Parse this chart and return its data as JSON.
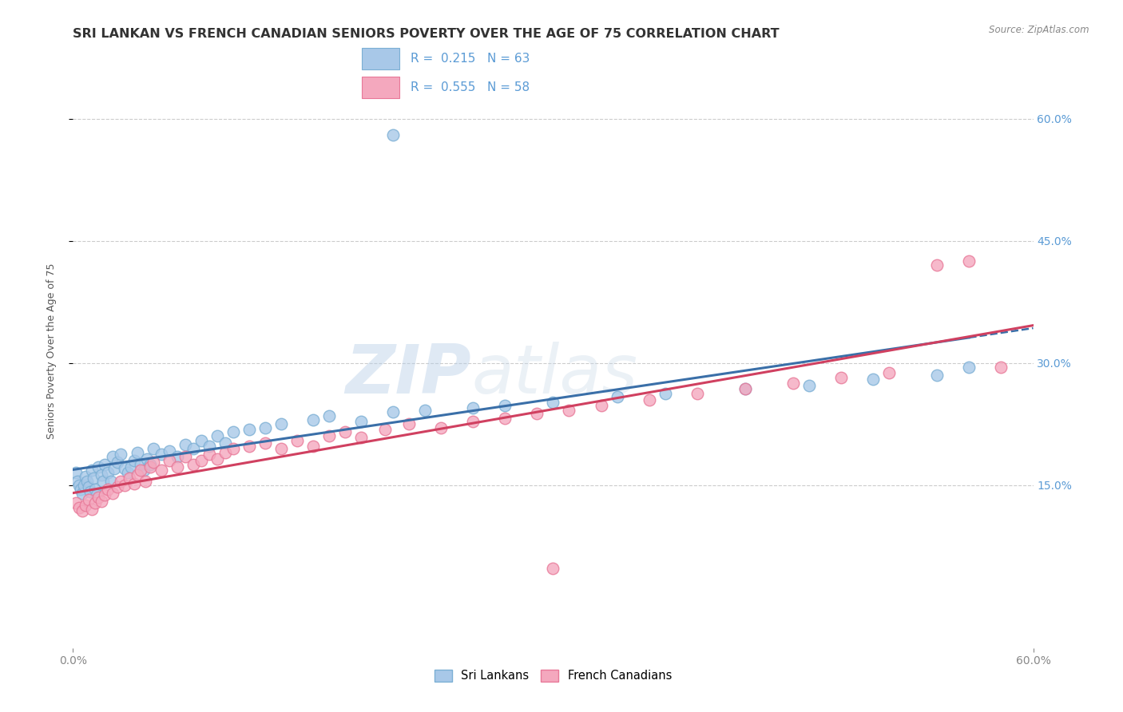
{
  "title": "SRI LANKAN VS FRENCH CANADIAN SENIORS POVERTY OVER THE AGE OF 75 CORRELATION CHART",
  "source": "Source: ZipAtlas.com",
  "ylabel": "Seniors Poverty Over the Age of 75",
  "xlim": [
    0.0,
    0.6
  ],
  "ylim": [
    -0.05,
    0.68
  ],
  "xticks": [
    0.0,
    0.6
  ],
  "xtick_labels": [
    "0.0%",
    "60.0%"
  ],
  "yticks": [
    0.15,
    0.3,
    0.45,
    0.6
  ],
  "ytick_labels": [
    "15.0%",
    "30.0%",
    "45.0%",
    "60.0%"
  ],
  "sri_lankan_color": "#a8c8e8",
  "french_canadian_color": "#f4a8be",
  "sri_lankan_edge": "#7bafd4",
  "french_canadian_edge": "#e87898",
  "sri_lankan_line_color": "#3a6fa8",
  "french_canadian_line_color": "#d04060",
  "sri_lankan_R": 0.215,
  "sri_lankan_N": 63,
  "french_canadian_R": 0.555,
  "french_canadian_N": 58,
  "watermark_text": "ZIPatlas",
  "legend_label_1": "Sri Lankans",
  "legend_label_2": "French Canadians",
  "sri_lankans_x": [
    0.002,
    0.003,
    0.004,
    0.005,
    0.006,
    0.007,
    0.008,
    0.009,
    0.01,
    0.011,
    0.012,
    0.013,
    0.014,
    0.015,
    0.016,
    0.018,
    0.019,
    0.02,
    0.022,
    0.024,
    0.025,
    0.026,
    0.028,
    0.03,
    0.032,
    0.034,
    0.036,
    0.038,
    0.04,
    0.042,
    0.044,
    0.046,
    0.048,
    0.05,
    0.055,
    0.06,
    0.065,
    0.07,
    0.075,
    0.08,
    0.085,
    0.09,
    0.095,
    0.1,
    0.11,
    0.12,
    0.13,
    0.15,
    0.16,
    0.18,
    0.2,
    0.22,
    0.25,
    0.27,
    0.3,
    0.34,
    0.37,
    0.42,
    0.46,
    0.5,
    0.54,
    0.56,
    0.2
  ],
  "sri_lankans_y": [
    0.165,
    0.155,
    0.15,
    0.145,
    0.14,
    0.15,
    0.16,
    0.155,
    0.148,
    0.142,
    0.168,
    0.158,
    0.145,
    0.138,
    0.172,
    0.162,
    0.155,
    0.175,
    0.165,
    0.155,
    0.185,
    0.17,
    0.178,
    0.188,
    0.17,
    0.165,
    0.172,
    0.18,
    0.19,
    0.175,
    0.168,
    0.182,
    0.175,
    0.195,
    0.188,
    0.192,
    0.185,
    0.2,
    0.195,
    0.205,
    0.198,
    0.21,
    0.202,
    0.215,
    0.218,
    0.22,
    0.225,
    0.23,
    0.235,
    0.228,
    0.24,
    0.242,
    0.245,
    0.248,
    0.252,
    0.258,
    0.262,
    0.268,
    0.272,
    0.28,
    0.285,
    0.295,
    0.58
  ],
  "french_canadians_x": [
    0.002,
    0.004,
    0.006,
    0.008,
    0.01,
    0.012,
    0.014,
    0.016,
    0.018,
    0.02,
    0.022,
    0.025,
    0.028,
    0.03,
    0.032,
    0.035,
    0.038,
    0.04,
    0.042,
    0.045,
    0.048,
    0.05,
    0.055,
    0.06,
    0.065,
    0.07,
    0.075,
    0.08,
    0.085,
    0.09,
    0.095,
    0.1,
    0.11,
    0.12,
    0.13,
    0.14,
    0.15,
    0.16,
    0.17,
    0.18,
    0.195,
    0.21,
    0.23,
    0.25,
    0.27,
    0.29,
    0.31,
    0.33,
    0.36,
    0.39,
    0.42,
    0.45,
    0.48,
    0.51,
    0.54,
    0.56,
    0.58,
    0.3
  ],
  "french_canadians_y": [
    0.128,
    0.122,
    0.118,
    0.125,
    0.132,
    0.12,
    0.128,
    0.135,
    0.13,
    0.138,
    0.145,
    0.14,
    0.148,
    0.155,
    0.15,
    0.158,
    0.152,
    0.162,
    0.168,
    0.155,
    0.172,
    0.178,
    0.168,
    0.18,
    0.172,
    0.185,
    0.175,
    0.18,
    0.188,
    0.182,
    0.19,
    0.195,
    0.198,
    0.202,
    0.195,
    0.205,
    0.198,
    0.21,
    0.215,
    0.208,
    0.218,
    0.225,
    0.22,
    0.228,
    0.232,
    0.238,
    0.242,
    0.248,
    0.255,
    0.262,
    0.268,
    0.275,
    0.282,
    0.288,
    0.42,
    0.425,
    0.295,
    0.048
  ],
  "bg_color": "#ffffff",
  "grid_color": "#cccccc",
  "tick_label_color": "#5b9bd5",
  "title_color": "#333333",
  "title_fontsize": 11.5,
  "source_fontsize": 8.5,
  "axis_label_fontsize": 9,
  "tick_fontsize": 10
}
